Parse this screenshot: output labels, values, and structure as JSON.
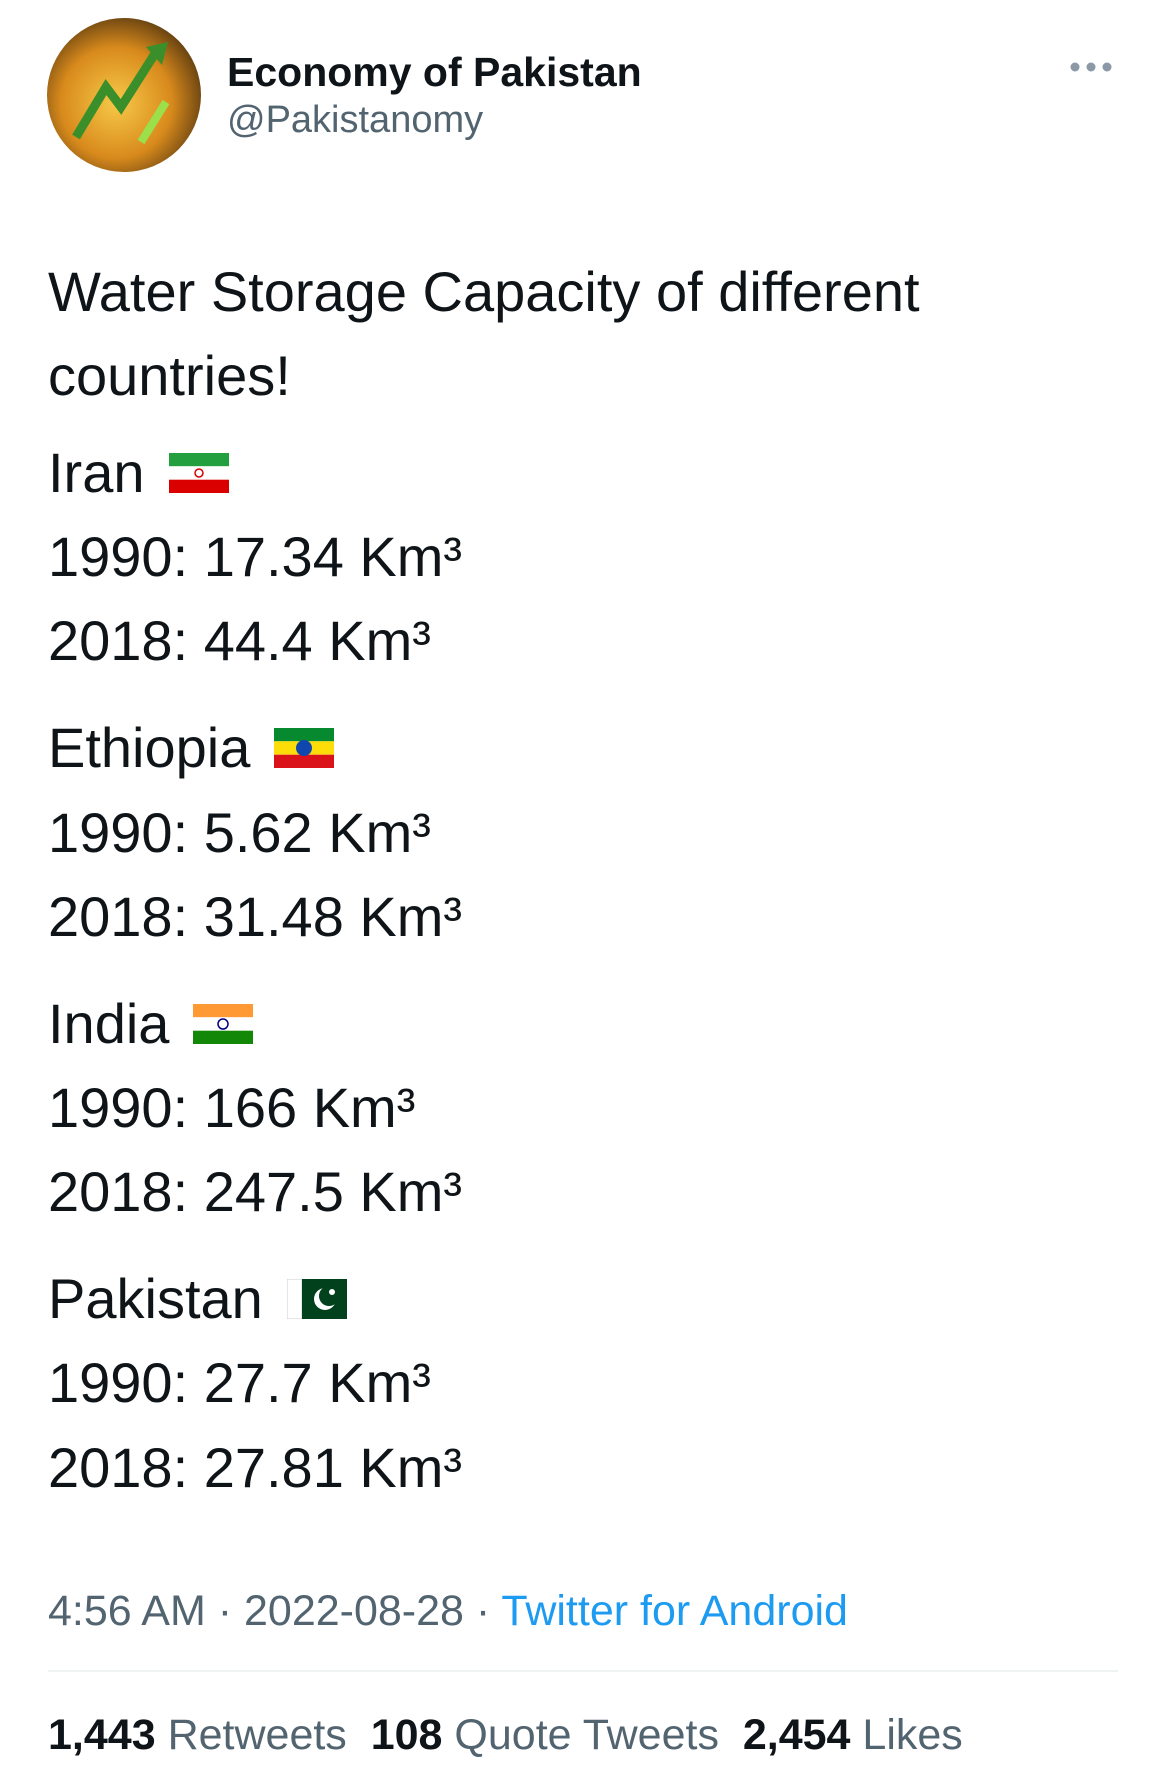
{
  "header": {
    "name": "Economy of Pakistan",
    "handle": "@Pakistanomy"
  },
  "tweet": {
    "title": "Water Storage Capacity of different countries!",
    "countries": [
      {
        "name": "Iran",
        "lines": [
          "1990: 17.34 Km³",
          "2018: 44.4 Km³"
        ]
      },
      {
        "name": "Ethiopia",
        "lines": [
          "1990: 5.62 Km³",
          "2018: 31.48 Km³"
        ]
      },
      {
        "name": "India",
        "lines": [
          "1990: 166 Km³",
          "2018: 247.5 Km³"
        ]
      },
      {
        "name": "Pakistan",
        "lines": [
          "1990: 27.7 Km³",
          "2018: 27.81 Km³"
        ]
      }
    ]
  },
  "footer": {
    "time": "4:56 AM",
    "separator": "·",
    "date": "2022-08-28",
    "source": "Twitter for Android"
  },
  "stats": [
    {
      "count": "1,443",
      "label": "Retweets"
    },
    {
      "count": "108",
      "label": "Quote Tweets"
    },
    {
      "count": "2,454",
      "label": "Likes"
    }
  ]
}
